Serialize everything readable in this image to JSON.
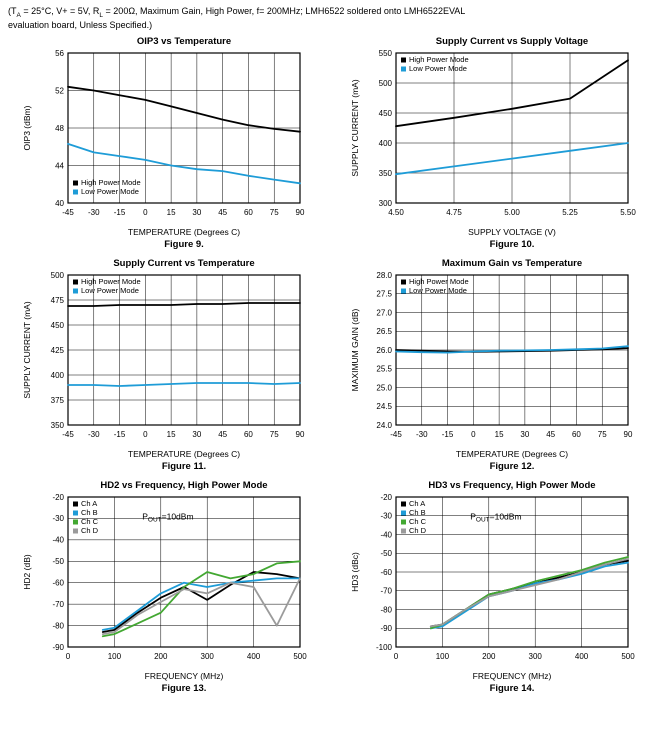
{
  "header": {
    "line1_segments": [
      {
        "t": "(T"
      },
      {
        "t": "A",
        "sub": true
      },
      {
        "t": " = 25°C, V+ = 5V, R"
      },
      {
        "t": "L",
        "sub": true
      },
      {
        "t": " = 200Ω, Maximum Gain, High Power, f= 200MHz; LMH6522 soldered onto LMH6522EVAL"
      }
    ],
    "line2": "evaluation board, Unless Specified.)"
  },
  "colors": {
    "black": "#000000",
    "blue": "#1e9cd7",
    "green": "#43a832",
    "gray": "#9b9b9b"
  },
  "chart_data": [
    {
      "type": "line",
      "title": "OIP3 vs Temperature",
      "xlabel": "TEMPERATURE (Degrees C)",
      "ylabel": "OIP3 (dBm)",
      "caption": "Figure 9.",
      "xlim": [
        -45,
        90
      ],
      "ylim": [
        40,
        56
      ],
      "xticks": [
        -45,
        -30,
        -15,
        0,
        15,
        30,
        45,
        60,
        75,
        90
      ],
      "xtick_labels": [
        "-45",
        "-30",
        "-15",
        "0",
        "15",
        "30",
        "45",
        "60",
        "75",
        "90"
      ],
      "yticks": [
        40,
        44,
        48,
        52,
        56
      ],
      "ytick_labels": [
        "40",
        "44",
        "48",
        "52",
        "56"
      ],
      "legend": "bl",
      "series": [
        {
          "name": "High Power Mode",
          "color": "#000000",
          "x": [
            -45,
            -30,
            -15,
            0,
            15,
            30,
            45,
            60,
            75,
            90
          ],
          "y": [
            52.4,
            52.0,
            51.5,
            51.0,
            50.3,
            49.6,
            48.9,
            48.3,
            47.9,
            47.6
          ]
        },
        {
          "name": "Low Power Mode",
          "color": "#1e9cd7",
          "x": [
            -45,
            -30,
            -15,
            0,
            15,
            30,
            45,
            60,
            75,
            90
          ],
          "y": [
            46.3,
            45.4,
            45.0,
            44.6,
            44.0,
            43.6,
            43.4,
            42.9,
            42.5,
            42.1
          ]
        }
      ]
    },
    {
      "type": "line",
      "title": "Supply Current vs Supply Voltage",
      "xlabel": "SUPPLY VOLTAGE (V)",
      "ylabel": "SUPPLY CURRENT (mA)",
      "caption": "Figure 10.",
      "xlim": [
        4.5,
        5.5
      ],
      "ylim": [
        300,
        550
      ],
      "xticks": [
        4.5,
        4.75,
        5.0,
        5.25,
        5.5
      ],
      "xtick_labels": [
        "4.50",
        "4.75",
        "5.00",
        "5.25",
        "5.50"
      ],
      "yticks": [
        300,
        350,
        400,
        450,
        500,
        550
      ],
      "ytick_labels": [
        "300",
        "350",
        "400",
        "450",
        "500",
        "550"
      ],
      "legend": "tl",
      "series": [
        {
          "name": "High Power Mode",
          "color": "#000000",
          "x": [
            4.5,
            4.75,
            5.0,
            5.25,
            5.5
          ],
          "y": [
            428,
            442,
            457,
            474,
            538
          ]
        },
        {
          "name": "Low Power Mode",
          "color": "#1e9cd7",
          "x": [
            4.5,
            4.75,
            5.0,
            5.25,
            5.5
          ],
          "y": [
            348,
            361,
            374,
            387,
            400
          ]
        }
      ]
    },
    {
      "type": "line",
      "title": "Supply Current vs Temperature",
      "xlabel": "TEMPERATURE (Degrees C)",
      "ylabel": "SUPPLY CURRENT (mA)",
      "caption": "Figure 11.",
      "xlim": [
        -45,
        90
      ],
      "ylim": [
        350,
        500
      ],
      "xticks": [
        -45,
        -30,
        -15,
        0,
        15,
        30,
        45,
        60,
        75,
        90
      ],
      "xtick_labels": [
        "-45",
        "-30",
        "-15",
        "0",
        "15",
        "30",
        "45",
        "60",
        "75",
        "90"
      ],
      "yticks": [
        350,
        375,
        400,
        425,
        450,
        475,
        500
      ],
      "ytick_labels": [
        "350",
        "375",
        "400",
        "425",
        "450",
        "475",
        "500"
      ],
      "legend": "tl",
      "series": [
        {
          "name": "High Power Mode",
          "color": "#000000",
          "x": [
            -45,
            -30,
            -15,
            0,
            15,
            30,
            45,
            60,
            75,
            90
          ],
          "y": [
            469,
            469,
            470,
            470,
            470,
            471,
            471,
            472,
            472,
            472
          ]
        },
        {
          "name": "Low Power Mode",
          "color": "#1e9cd7",
          "x": [
            -45,
            -30,
            -15,
            0,
            15,
            30,
            45,
            60,
            75,
            90
          ],
          "y": [
            390,
            390,
            389,
            390,
            391,
            392,
            392,
            392,
            391,
            392
          ]
        }
      ]
    },
    {
      "type": "line",
      "title": "Maximum Gain vs Temperature",
      "xlabel": "TEMPERATURE (Degrees C)",
      "ylabel": "MAXIMUM GAIN (dB)",
      "caption": "Figure 12.",
      "xlim": [
        -45,
        90
      ],
      "ylim": [
        24.0,
        28.0
      ],
      "xticks": [
        -45,
        -30,
        -15,
        0,
        15,
        30,
        45,
        60,
        75,
        90
      ],
      "xtick_labels": [
        "-45",
        "-30",
        "-15",
        "0",
        "15",
        "30",
        "45",
        "60",
        "75",
        "90"
      ],
      "yticks": [
        24.0,
        24.5,
        25.0,
        25.5,
        26.0,
        26.5,
        27.0,
        27.5,
        28.0
      ],
      "ytick_labels": [
        "24.0",
        "24.5",
        "25.0",
        "25.5",
        "26.0",
        "26.5",
        "27.0",
        "27.5",
        "28.0"
      ],
      "legend": "tl",
      "series": [
        {
          "name": "High Power Mode",
          "color": "#000000",
          "x": [
            -45,
            -30,
            -15,
            0,
            15,
            30,
            45,
            60,
            75,
            90
          ],
          "y": [
            26.0,
            25.98,
            25.96,
            25.95,
            25.96,
            25.97,
            25.98,
            26.0,
            26.02,
            26.05
          ]
        },
        {
          "name": "Low Power Mode",
          "color": "#1e9cd7",
          "x": [
            -45,
            -30,
            -15,
            0,
            15,
            30,
            45,
            60,
            75,
            90
          ],
          "y": [
            25.96,
            25.94,
            25.93,
            25.96,
            25.98,
            25.99,
            26.0,
            26.02,
            26.04,
            26.1
          ]
        }
      ]
    },
    {
      "type": "line",
      "title": "HD2 vs Frequency, High Power Mode",
      "xlabel": "FREQUENCY (MHz)",
      "ylabel": "HD2 (dB)",
      "caption": "Figure 13.",
      "xlim": [
        0,
        500
      ],
      "ylim": [
        -90,
        -20
      ],
      "xticks": [
        0,
        100,
        200,
        300,
        400,
        500
      ],
      "xtick_labels": [
        "0",
        "100",
        "200",
        "300",
        "400",
        "500"
      ],
      "yticks": [
        -90,
        -80,
        -70,
        -60,
        -50,
        -40,
        -30,
        -20
      ],
      "ytick_labels": [
        "-90",
        "-80",
        "-70",
        "-60",
        "-50",
        "-40",
        "-30",
        "-20"
      ],
      "legend": "tl",
      "annotation": {
        "x": 0.32,
        "y": 0.15,
        "segments": [
          {
            "t": "P"
          },
          {
            "t": "OUT",
            "sub": true
          },
          {
            "t": "=10dBm"
          }
        ]
      },
      "series": [
        {
          "name": "Ch A",
          "color": "#000000",
          "x": [
            75,
            100,
            150,
            200,
            250,
            300,
            350,
            400,
            450,
            500
          ],
          "y": [
            -83,
            -82,
            -74,
            -67,
            -62,
            -68,
            -61,
            -55,
            -56,
            -58
          ]
        },
        {
          "name": "Ch B",
          "color": "#1e9cd7",
          "x": [
            75,
            100,
            150,
            200,
            250,
            300,
            350,
            400,
            450,
            500
          ],
          "y": [
            -82,
            -81,
            -73,
            -65,
            -60,
            -62,
            -60,
            -59,
            -58,
            -58
          ]
        },
        {
          "name": "Ch C",
          "color": "#43a832",
          "x": [
            75,
            100,
            150,
            200,
            250,
            300,
            350,
            400,
            450,
            500
          ],
          "y": [
            -85,
            -84,
            -79,
            -74,
            -62,
            -55,
            -58,
            -56,
            -51,
            -50
          ]
        },
        {
          "name": "Ch D",
          "color": "#9b9b9b",
          "x": [
            75,
            100,
            150,
            200,
            250,
            300,
            350,
            400,
            450,
            500
          ],
          "y": [
            -84,
            -83,
            -75,
            -69,
            -63,
            -65,
            -60,
            -62,
            -80,
            -58
          ]
        }
      ]
    },
    {
      "type": "line",
      "title": "HD3 vs Frequency, High Power Mode",
      "xlabel": "FREQUENCY (MHz)",
      "ylabel": "HD3 (dBc)",
      "caption": "Figure 14.",
      "xlim": [
        0,
        500
      ],
      "ylim": [
        -100,
        -20
      ],
      "xticks": [
        0,
        100,
        200,
        300,
        400,
        500
      ],
      "xtick_labels": [
        "0",
        "100",
        "200",
        "300",
        "400",
        "500"
      ],
      "yticks": [
        -100,
        -90,
        -80,
        -70,
        -60,
        -50,
        -40,
        -30,
        -20
      ],
      "ytick_labels": [
        "-100",
        "-90",
        "-80",
        "-70",
        "-60",
        "-50",
        "-40",
        "-30",
        "-20"
      ],
      "legend": "tl",
      "annotation": {
        "x": 0.32,
        "y": 0.15,
        "segments": [
          {
            "t": "P"
          },
          {
            "t": "OUT",
            "sub": true
          },
          {
            "t": "=10dBm"
          }
        ]
      },
      "series": [
        {
          "name": "Ch A",
          "color": "#000000",
          "x": [
            75,
            100,
            150,
            200,
            250,
            300,
            350,
            400,
            450,
            500
          ],
          "y": [
            -89,
            -88,
            -80,
            -72,
            -69,
            -66,
            -63,
            -60,
            -56,
            -54
          ]
        },
        {
          "name": "Ch B",
          "color": "#1e9cd7",
          "x": [
            75,
            100,
            150,
            200,
            250,
            300,
            350,
            400,
            450,
            500
          ],
          "y": [
            -90,
            -89,
            -81,
            -73,
            -70,
            -66,
            -64,
            -61,
            -57,
            -55
          ]
        },
        {
          "name": "Ch C",
          "color": "#43a832",
          "x": [
            75,
            100,
            150,
            200,
            250,
            300,
            350,
            400,
            450,
            500
          ],
          "y": [
            -90,
            -88,
            -80,
            -72,
            -69,
            -65,
            -62,
            -59,
            -55,
            -52
          ]
        },
        {
          "name": "Ch D",
          "color": "#9b9b9b",
          "x": [
            75,
            100,
            150,
            200,
            250,
            300,
            350,
            400,
            450,
            500
          ],
          "y": [
            -89,
            -88,
            -80,
            -73,
            -70,
            -67,
            -64,
            -60,
            -56,
            -53
          ]
        }
      ]
    }
  ]
}
